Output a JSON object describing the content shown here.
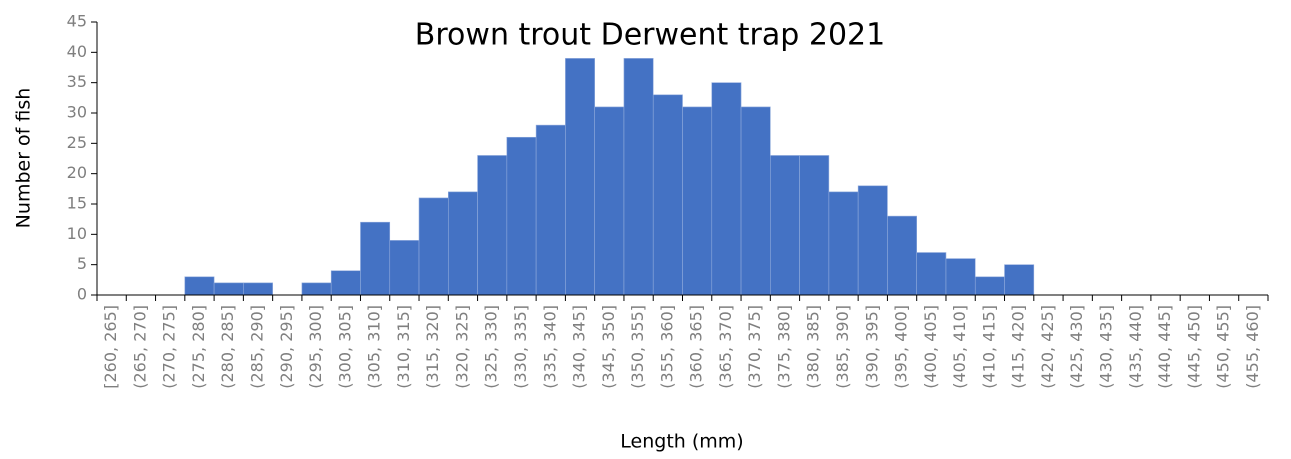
{
  "chart_data": {
    "type": "bar",
    "title": "Brown trout Derwent trap 2021",
    "x_label": "Length (mm)",
    "y_label": "Number of fish",
    "categories": [
      "[260, 265]",
      "(265, 270]",
      "(270, 275]",
      "(275, 280]",
      "(280, 285]",
      "(285, 290]",
      "(290, 295]",
      "(295, 300]",
      "(300, 305]",
      "(305, 310]",
      "(310, 315]",
      "(315, 320]",
      "(320, 325]",
      "(325, 330]",
      "(330, 335]",
      "(335, 340]",
      "(340, 345]",
      "(345, 350]",
      "(350, 355]",
      "(355, 360]",
      "(360, 365]",
      "(365, 370]",
      "(370, 375]",
      "(375, 380]",
      "(380, 385]",
      "(385, 390]",
      "(390, 395]",
      "(395, 400]",
      "(400, 405]",
      "(405, 410]",
      "(410, 415]",
      "(415, 420]",
      "(420, 425]",
      "(425, 430]",
      "(430, 435]",
      "(435, 440]",
      "(440, 445]",
      "(445, 450]",
      "(450, 455]",
      "(455, 460]"
    ],
    "values": [
      0,
      0,
      0,
      3,
      2,
      2,
      0,
      2,
      4,
      12,
      9,
      16,
      17,
      23,
      26,
      28,
      39,
      31,
      39,
      33,
      31,
      35,
      31,
      23,
      23,
      17,
      18,
      13,
      7,
      6,
      3,
      5,
      0,
      0,
      0,
      0,
      0,
      0,
      0,
      0
    ],
    "color": "#4472c4",
    "ylim": [
      0,
      45
    ],
    "yticks": [
      0,
      5,
      10,
      15,
      20,
      25,
      30,
      35,
      40,
      45
    ],
    "grid": false
  }
}
